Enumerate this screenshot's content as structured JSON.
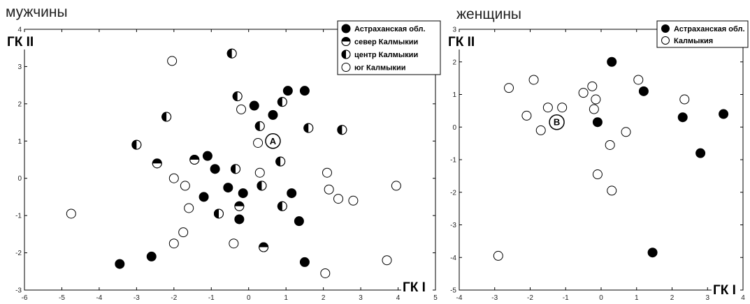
{
  "chart_data": [
    {
      "type": "scatter",
      "title": "мужчины",
      "xlabel": "ГК I",
      "ylabel": "ГК II",
      "xlim": [
        -6,
        5
      ],
      "ylim": [
        -3,
        4
      ],
      "xticks": [
        "-6",
        "-5",
        "-4",
        "-3",
        "-2",
        "-1",
        "0",
        "1",
        "2",
        "3",
        "4",
        "5"
      ],
      "yticks": [
        "-3",
        "-2",
        "-1",
        "0",
        "1",
        "2",
        "3",
        "4"
      ],
      "grid": false,
      "legend_position": "top-right",
      "annotation": {
        "label": "A",
        "x": 0.65,
        "y": 1.0
      },
      "series": [
        {
          "name": "Астраханская обл.",
          "marker": "filled",
          "points": [
            [
              0.15,
              1.95
            ],
            [
              0.65,
              1.7
            ],
            [
              1.05,
              2.35
            ],
            [
              1.5,
              2.35
            ],
            [
              -1.1,
              0.6
            ],
            [
              -0.9,
              0.25
            ],
            [
              -0.55,
              -0.25
            ],
            [
              -0.15,
              -0.4
            ],
            [
              -1.2,
              -0.5
            ],
            [
              -0.25,
              -1.1
            ],
            [
              1.15,
              -0.4
            ],
            [
              1.35,
              -1.15
            ],
            [
              1.5,
              -2.25
            ],
            [
              -2.6,
              -2.1
            ],
            [
              -3.45,
              -2.3
            ]
          ]
        },
        {
          "name": "север Калмыкии",
          "marker": "half-top",
          "points": [
            [
              -2.45,
              0.4
            ],
            [
              -1.45,
              0.5
            ],
            [
              -0.25,
              -0.75
            ],
            [
              0.4,
              -1.85
            ]
          ]
        },
        {
          "name": "центр Калмыкии",
          "marker": "half-left",
          "points": [
            [
              -0.45,
              3.35
            ],
            [
              -0.3,
              2.2
            ],
            [
              -2.2,
              1.65
            ],
            [
              0.9,
              2.05
            ],
            [
              0.3,
              1.4
            ],
            [
              1.6,
              1.35
            ],
            [
              2.5,
              1.3
            ],
            [
              -3.0,
              0.9
            ],
            [
              -0.35,
              0.25
            ],
            [
              0.85,
              0.45
            ],
            [
              0.35,
              -0.2
            ],
            [
              -0.8,
              -0.95
            ],
            [
              0.9,
              -0.75
            ]
          ]
        },
        {
          "name": "юг Калмыкии",
          "marker": "open",
          "points": [
            [
              -2.05,
              3.15
            ],
            [
              -0.2,
              1.85
            ],
            [
              0.25,
              0.95
            ],
            [
              0.3,
              0.15
            ],
            [
              2.1,
              0.15
            ],
            [
              2.15,
              -0.3
            ],
            [
              2.4,
              -0.55
            ],
            [
              2.8,
              -0.6
            ],
            [
              3.95,
              -0.2
            ],
            [
              -2.0,
              0.0
            ],
            [
              -1.7,
              -0.2
            ],
            [
              -1.6,
              -0.8
            ],
            [
              -1.75,
              -1.45
            ],
            [
              -2.0,
              -1.75
            ],
            [
              -0.4,
              -1.75
            ],
            [
              -4.75,
              -0.95
            ],
            [
              2.05,
              -2.55
            ],
            [
              3.7,
              -2.2
            ]
          ]
        }
      ]
    },
    {
      "type": "scatter",
      "title": "женщины",
      "xlabel": "ГК I",
      "ylabel": "ГК II",
      "xlim": [
        -4,
        4
      ],
      "ylim": [
        -5,
        3
      ],
      "xticks": [
        "-4",
        "-3",
        "-2",
        "-1",
        "0",
        "1",
        "2",
        "3",
        "4"
      ],
      "yticks": [
        "-5",
        "-4",
        "-3",
        "-2",
        "-1",
        "0",
        "1",
        "2",
        "3"
      ],
      "grid": false,
      "legend_position": "top-right",
      "annotation": {
        "label": "B",
        "x": -1.25,
        "y": 0.15
      },
      "series": [
        {
          "name": "Астраханская обл.",
          "marker": "filled",
          "points": [
            [
              0.3,
              2.0
            ],
            [
              1.2,
              1.1
            ],
            [
              2.3,
              0.3
            ],
            [
              3.45,
              0.4
            ],
            [
              -0.1,
              0.15
            ],
            [
              2.8,
              -0.8
            ],
            [
              1.45,
              -3.85
            ]
          ]
        },
        {
          "name": "Калмыкия",
          "marker": "open",
          "points": [
            [
              -2.6,
              1.2
            ],
            [
              -1.9,
              1.45
            ],
            [
              -0.5,
              1.05
            ],
            [
              -0.25,
              1.25
            ],
            [
              -0.15,
              0.85
            ],
            [
              1.05,
              1.45
            ],
            [
              2.35,
              0.85
            ],
            [
              -1.5,
              0.6
            ],
            [
              -1.1,
              0.6
            ],
            [
              -0.2,
              0.55
            ],
            [
              -2.1,
              0.35
            ],
            [
              -1.7,
              -0.1
            ],
            [
              0.7,
              -0.15
            ],
            [
              0.25,
              -0.55
            ],
            [
              -0.1,
              -1.45
            ],
            [
              0.3,
              -1.95
            ],
            [
              -2.9,
              -3.95
            ]
          ]
        }
      ]
    }
  ]
}
